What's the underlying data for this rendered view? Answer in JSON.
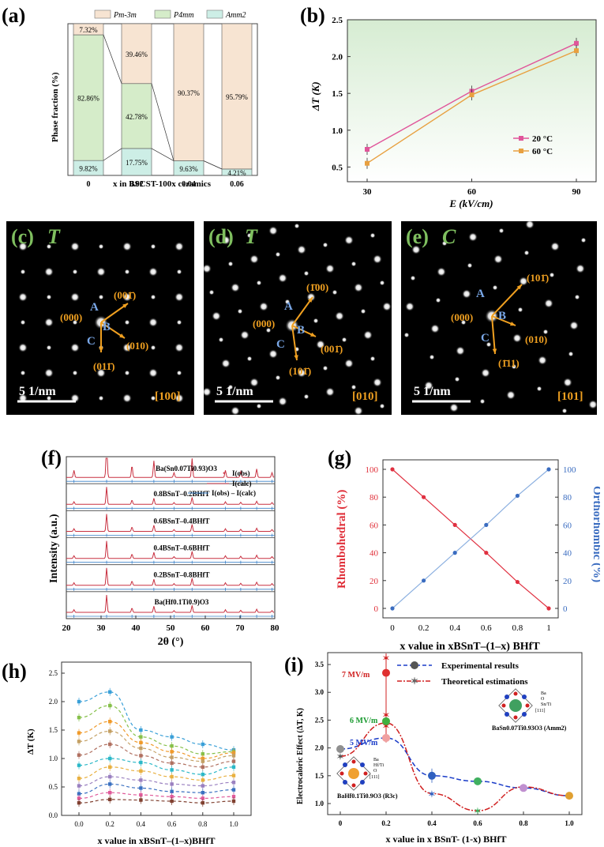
{
  "panels": {
    "a": "(a)",
    "b": "(b)",
    "c": "(c)",
    "d": "(d)",
    "e": "(e)",
    "f": "(f)",
    "g": "(g)",
    "h": "(h)",
    "i": "(i)"
  },
  "panel_a": {
    "legend": [
      "Pm-3m",
      "P4mm",
      "Amm2"
    ],
    "ylabel": "Phase fraction (%)",
    "xlabel": "x in BSCST-100x ceramics",
    "categories": [
      "0",
      "0.02",
      "0.04",
      "0.06"
    ],
    "bottom_labels": [
      "9.82%",
      "17.75%",
      "9.63%",
      "4.21%"
    ],
    "middle_labels": [
      "82.86%",
      "42.78%",
      "",
      ""
    ],
    "top_labels": [
      "7.32%",
      "39.46%",
      "90.37%",
      "95.79%"
    ],
    "colors": {
      "pm3m": "#f7e4d2",
      "p4mm": "#d5ecc9",
      "amm2": "#cdeee6"
    }
  },
  "panel_b": {
    "ylabel": "ΔT (K)",
    "xlabel": "E (kV/cm)",
    "xticks": [
      "30",
      "60",
      "90"
    ],
    "yticks": [
      "0.5",
      "1.0",
      "1.5",
      "2.0",
      "2.5"
    ],
    "series": [
      {
        "name": "20 °C",
        "color": "#e0559a",
        "values": [
          0.74,
          1.53,
          2.18
        ]
      },
      {
        "name": "60 °C",
        "color": "#e8a040",
        "values": [
          0.55,
          1.48,
          2.08
        ]
      }
    ]
  },
  "panel_c": {
    "phase": "T",
    "zone": "[100]",
    "scale": "5 1/nm",
    "origin": "(000)",
    "spots": [
      "(001̄)",
      "(010)",
      "(011̄)"
    ],
    "arrows": [
      "A",
      "B",
      "C"
    ]
  },
  "panel_d": {
    "phase": "T",
    "zone": "[010]",
    "scale": "5 1/nm",
    "origin": "(000)",
    "spots": [
      "(1̄00)",
      "(001̄)",
      "(101̄)"
    ],
    "arrows": [
      "A",
      "B",
      "C"
    ]
  },
  "panel_e": {
    "phase": "C",
    "zone": "[101]",
    "scale": "5 1/nm",
    "origin": "(000)",
    "spots": [
      "(101̄)",
      "(010)",
      "(1̄11)"
    ],
    "arrows": [
      "A",
      "B",
      "C"
    ]
  },
  "panel_f": {
    "ylabel": "Intensity (a.u.)",
    "xlabel": "2θ (°)",
    "xticks": [
      "20",
      "30",
      "40",
      "50",
      "60",
      "70",
      "80"
    ],
    "legend": [
      "I(obs)",
      "I(calc)",
      "I(obs) – I(calc)"
    ],
    "patterns": [
      "Ba(Sn0.07Ti0.93)O3",
      "0.8BSnT–0.2BHfT",
      "0.6BSnT–0.4BHfT",
      "0.4BSnT–0.6BHfT",
      "0.2BSnT–0.8BHfT",
      "Ba(Hf0.1Ti0.9)O3"
    ]
  },
  "panel_g": {
    "ylabel_left": "Rhombohedral (%)",
    "ylabel_right": "Orthorhombic (%)",
    "xlabel": "x value in xBSnT–(1–x) BHfT",
    "xticks": [
      "0",
      "0.2",
      "0.4",
      "0.6",
      "0.8",
      "1"
    ],
    "yticks": [
      "0",
      "20",
      "40",
      "60",
      "80",
      "100"
    ],
    "x": [
      0,
      0.2,
      0.4,
      0.6,
      0.8,
      1.0
    ],
    "rhombohedral": [
      100,
      80,
      60,
      40,
      19,
      0
    ],
    "orthorhombic": [
      0,
      20,
      40,
      60,
      81,
      100
    ]
  },
  "panel_h": {
    "ylabel": "ΔT (K)",
    "xlabel": "x value in  xBSnT–(1–x)BHfT",
    "xticks": [
      "0.0",
      "0.2",
      "0.4",
      "0.6",
      "0.8",
      "1.0"
    ],
    "yticks": [
      "0.0",
      "0.5",
      "1.0",
      "1.5",
      "2.0",
      "2.5"
    ],
    "x": [
      0,
      0.2,
      0.4,
      0.6,
      0.8,
      1.0
    ],
    "series": [
      {
        "color": "#3aa0d8",
        "values": [
          2.0,
          2.17,
          1.5,
          1.38,
          1.25,
          1.15
        ]
      },
      {
        "color": "#86c04a",
        "values": [
          1.72,
          1.93,
          1.38,
          1.22,
          1.08,
          1.12
        ]
      },
      {
        "color": "#f09a2a",
        "values": [
          1.45,
          1.65,
          1.28,
          1.12,
          1.0,
          1.1
        ]
      },
      {
        "color": "#c4a064",
        "values": [
          1.3,
          1.48,
          1.18,
          1.02,
          0.95,
          1.05
        ]
      },
      {
        "color": "#b07060",
        "values": [
          1.06,
          1.25,
          1.05,
          0.92,
          0.85,
          0.95
        ]
      },
      {
        "color": "#2cb8c8",
        "values": [
          0.88,
          1.0,
          0.93,
          0.8,
          0.72,
          0.85
        ]
      },
      {
        "color": "#e8b040",
        "values": [
          0.65,
          0.85,
          0.78,
          0.68,
          0.62,
          0.7
        ]
      },
      {
        "color": "#9a80c0",
        "values": [
          0.52,
          0.68,
          0.62,
          0.55,
          0.52,
          0.58
        ]
      },
      {
        "color": "#3a70c0",
        "values": [
          0.38,
          0.55,
          0.48,
          0.42,
          0.4,
          0.45
        ]
      },
      {
        "color": "#e05a9a",
        "values": [
          0.3,
          0.4,
          0.36,
          0.33,
          0.3,
          0.33
        ]
      },
      {
        "color": "#804030",
        "values": [
          0.22,
          0.28,
          0.27,
          0.25,
          0.22,
          0.25
        ]
      }
    ]
  },
  "panel_i": {
    "ylabel": "Electrocaloric Effect (ΔT, K)",
    "xlabel": "x value in x BSnT- (1-x) BHfT",
    "xticks": [
      "0",
      "0.2",
      "0.4",
      "0.6",
      "0.8",
      "1.0"
    ],
    "yticks": [
      "1.0",
      "1.5",
      "2.0",
      "2.5",
      "3.0",
      "3.5"
    ],
    "legend": [
      "Experimental results",
      "Theoretical estimations"
    ],
    "field_labels": [
      "7 MV/m",
      "6 MV/m",
      "5 MV/m"
    ],
    "experimental": {
      "x": [
        0,
        0.2,
        0.4,
        0.6,
        0.8,
        1.0
      ],
      "values": [
        1.98,
        2.18,
        1.5,
        1.4,
        1.28,
        1.14
      ],
      "colors": [
        "#909090",
        "#f0a0a0",
        "#3060c0",
        "#40b060",
        "#c090d0",
        "#e0a030"
      ]
    },
    "theoretical": {
      "x": [
        0,
        0.2,
        0.4,
        0.6,
        0.8,
        1.0
      ],
      "values": [
        1.85,
        2.45,
        1.18,
        0.87,
        1.3,
        1.14
      ]
    },
    "field_points": {
      "x": 0.2,
      "values": [
        3.35,
        2.48,
        2.18
      ],
      "theory": [
        3.62,
        2.6,
        2.4
      ]
    },
    "structure_labels": {
      "bhft": "BaHf0.1Ti0.9O3 (R3c)",
      "bsnt": "BaSn0.07Ti0.93O3 (Amm2)",
      "bhft_legend": [
        "Ba",
        "Hf/Ti",
        "O",
        "[111]"
      ],
      "bsnt_legend": [
        "Ba",
        "O",
        "Sn/Ti",
        "[111]"
      ]
    }
  }
}
